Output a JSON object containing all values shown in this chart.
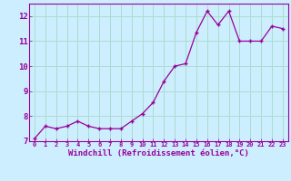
{
  "x": [
    0,
    1,
    2,
    3,
    4,
    5,
    6,
    7,
    8,
    9,
    10,
    11,
    12,
    13,
    14,
    15,
    16,
    17,
    18,
    19,
    20,
    21,
    22,
    23
  ],
  "y": [
    7.1,
    7.6,
    7.5,
    7.6,
    7.8,
    7.6,
    7.5,
    7.5,
    7.5,
    7.8,
    8.1,
    8.55,
    9.4,
    10.0,
    10.1,
    11.35,
    12.2,
    11.65,
    12.2,
    11.0,
    11.0,
    11.0,
    11.6,
    11.5
  ],
  "line_color": "#990099",
  "marker_color": "#990099",
  "bg_color": "#cceeff",
  "grid_color": "#aaddcc",
  "axis_label_color": "#990099",
  "tick_color": "#990099",
  "xlabel": "Windchill (Refroidissement éolien,°C)",
  "ylim": [
    7,
    12.5
  ],
  "xlim_min": -0.5,
  "xlim_max": 23.5,
  "yticks": [
    7,
    8,
    9,
    10,
    11,
    12
  ],
  "xticks": [
    0,
    1,
    2,
    3,
    4,
    5,
    6,
    7,
    8,
    9,
    10,
    11,
    12,
    13,
    14,
    15,
    16,
    17,
    18,
    19,
    20,
    21,
    22,
    23
  ],
  "xtick_fontsize": 5.0,
  "ytick_fontsize": 6.5,
  "xlabel_fontsize": 6.5
}
